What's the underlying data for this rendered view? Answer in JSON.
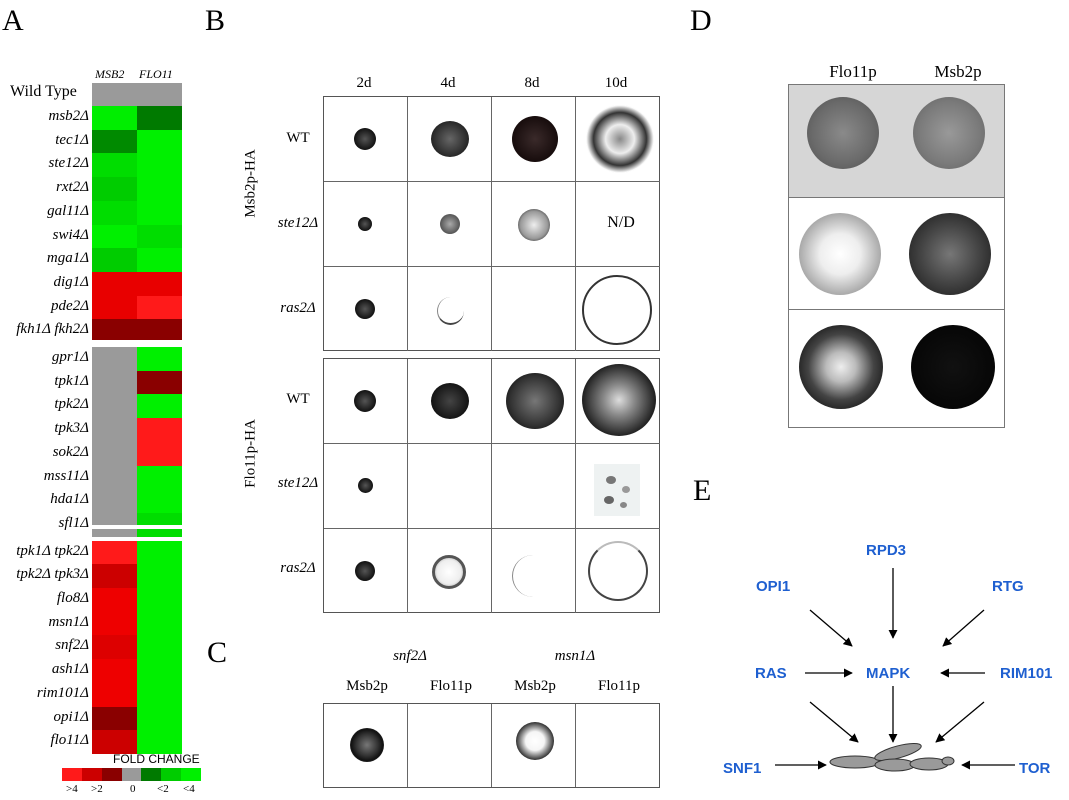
{
  "panels": {
    "a": "A",
    "b": "B",
    "c": "C",
    "d": "D",
    "e": "E"
  },
  "panel_a": {
    "col_headers": [
      "MSB2",
      "FLO11"
    ],
    "wild_type": "Wild Type",
    "rows": [
      {
        "label": "msb2Δ",
        "msb2": "#00ee00",
        "flo11": "#007a00"
      },
      {
        "label": "tec1Δ",
        "msb2": "#008a00",
        "flo11": "#00f000"
      },
      {
        "label": "ste12Δ",
        "msb2": "#00dd00",
        "flo11": "#00f000"
      },
      {
        "label": "rxt2Δ",
        "msb2": "#00cc00",
        "flo11": "#00f000"
      },
      {
        "label": "gal11Δ",
        "msb2": "#00dd00",
        "flo11": "#00f000"
      },
      {
        "label": "swi4Δ",
        "msb2": "#00f000",
        "flo11": "#00dd00"
      },
      {
        "label": "mga1Δ",
        "msb2": "#00cc00",
        "flo11": "#00f000"
      },
      {
        "label": "dig1Δ",
        "msb2": "#e80000",
        "flo11": "#e80000"
      },
      {
        "label": "pde2Δ",
        "msb2": "#e80000",
        "flo11": "#ff1a1a"
      },
      {
        "label": "fkh1Δ fkh2Δ",
        "msb2": "#8a0000",
        "flo11": "#8a0000"
      },
      {
        "label": "gpr1Δ",
        "msb2": "#9a9a9a",
        "flo11": "#00f000"
      },
      {
        "label": "tpk1Δ",
        "msb2": "#9a9a9a",
        "flo11": "#8a0000"
      },
      {
        "label": "tpk2Δ",
        "msb2": "#9a9a9a",
        "flo11": "#00f000"
      },
      {
        "label": "tpk3Δ",
        "msb2": "#9a9a9a",
        "flo11": "#ff1a1a"
      },
      {
        "label": "sok2Δ",
        "msb2": "#9a9a9a",
        "flo11": "#ff1a1a"
      },
      {
        "label": "mss11Δ",
        "msb2": "#9a9a9a",
        "flo11": "#00f000"
      },
      {
        "label": "hda1Δ",
        "msb2": "#9a9a9a",
        "flo11": "#00f000"
      },
      {
        "label": "sfl1Δ",
        "msb2": "#9a9a9a",
        "flo11": "#00dd00"
      },
      {
        "label": "tpk1Δ tpk2Δ",
        "msb2": "#ff1a1a",
        "flo11": "#00f000"
      },
      {
        "label": "tpk2Δ tpk3Δ",
        "msb2": "#cc0000",
        "flo11": "#00f000"
      },
      {
        "label": "flo8Δ",
        "msb2": "#ee0000",
        "flo11": "#00f000"
      },
      {
        "label": "msn1Δ",
        "msb2": "#ee0000",
        "flo11": "#00f000"
      },
      {
        "label": "snf2Δ",
        "msb2": "#dd0000",
        "flo11": "#00f000"
      },
      {
        "label": "ash1Δ",
        "msb2": "#ee0000",
        "flo11": "#00f000"
      },
      {
        "label": "rim101Δ",
        "msb2": "#ee0000",
        "flo11": "#00f000"
      },
      {
        "label": "opi1Δ",
        "msb2": "#8a0000",
        "flo11": "#00f000"
      },
      {
        "label": "flo11Δ",
        "msb2": "#cc0000",
        "flo11": "#00f000"
      }
    ],
    "legend_title": "FOLD CHANGE",
    "legend_colors": [
      "#ff1a1a",
      "#cc0000",
      "#8a0000",
      "#9a9a9a",
      "#007a00",
      "#00cc00",
      "#00f000"
    ],
    "legend_labels": [
      ">4",
      ">2",
      "0",
      "<2",
      "<4"
    ]
  },
  "panel_b": {
    "times": [
      "2d",
      "4d",
      "8d",
      "10d"
    ],
    "group1": "Msb2p-HA",
    "group2": "Flo11p-HA",
    "rows": [
      "WT",
      "ste12Δ",
      "ras2Δ"
    ],
    "nd": "N/D"
  },
  "panel_c": {
    "strains": [
      "snf2Δ",
      "msn1Δ"
    ],
    "proteins": [
      "Msb2p",
      "Flo11p",
      "Msb2p",
      "Flo11p"
    ]
  },
  "panel_d": {
    "cols": [
      "Flo11p",
      "Msb2p"
    ]
  },
  "panel_e": {
    "nodes": {
      "rpd3": "RPD3",
      "opi1": "OPI1",
      "rtg": "RTG",
      "ras": "RAS",
      "mapk": "MAPK",
      "rim101": "RIM101",
      "snf1": "SNF1",
      "tor": "TOR"
    }
  }
}
